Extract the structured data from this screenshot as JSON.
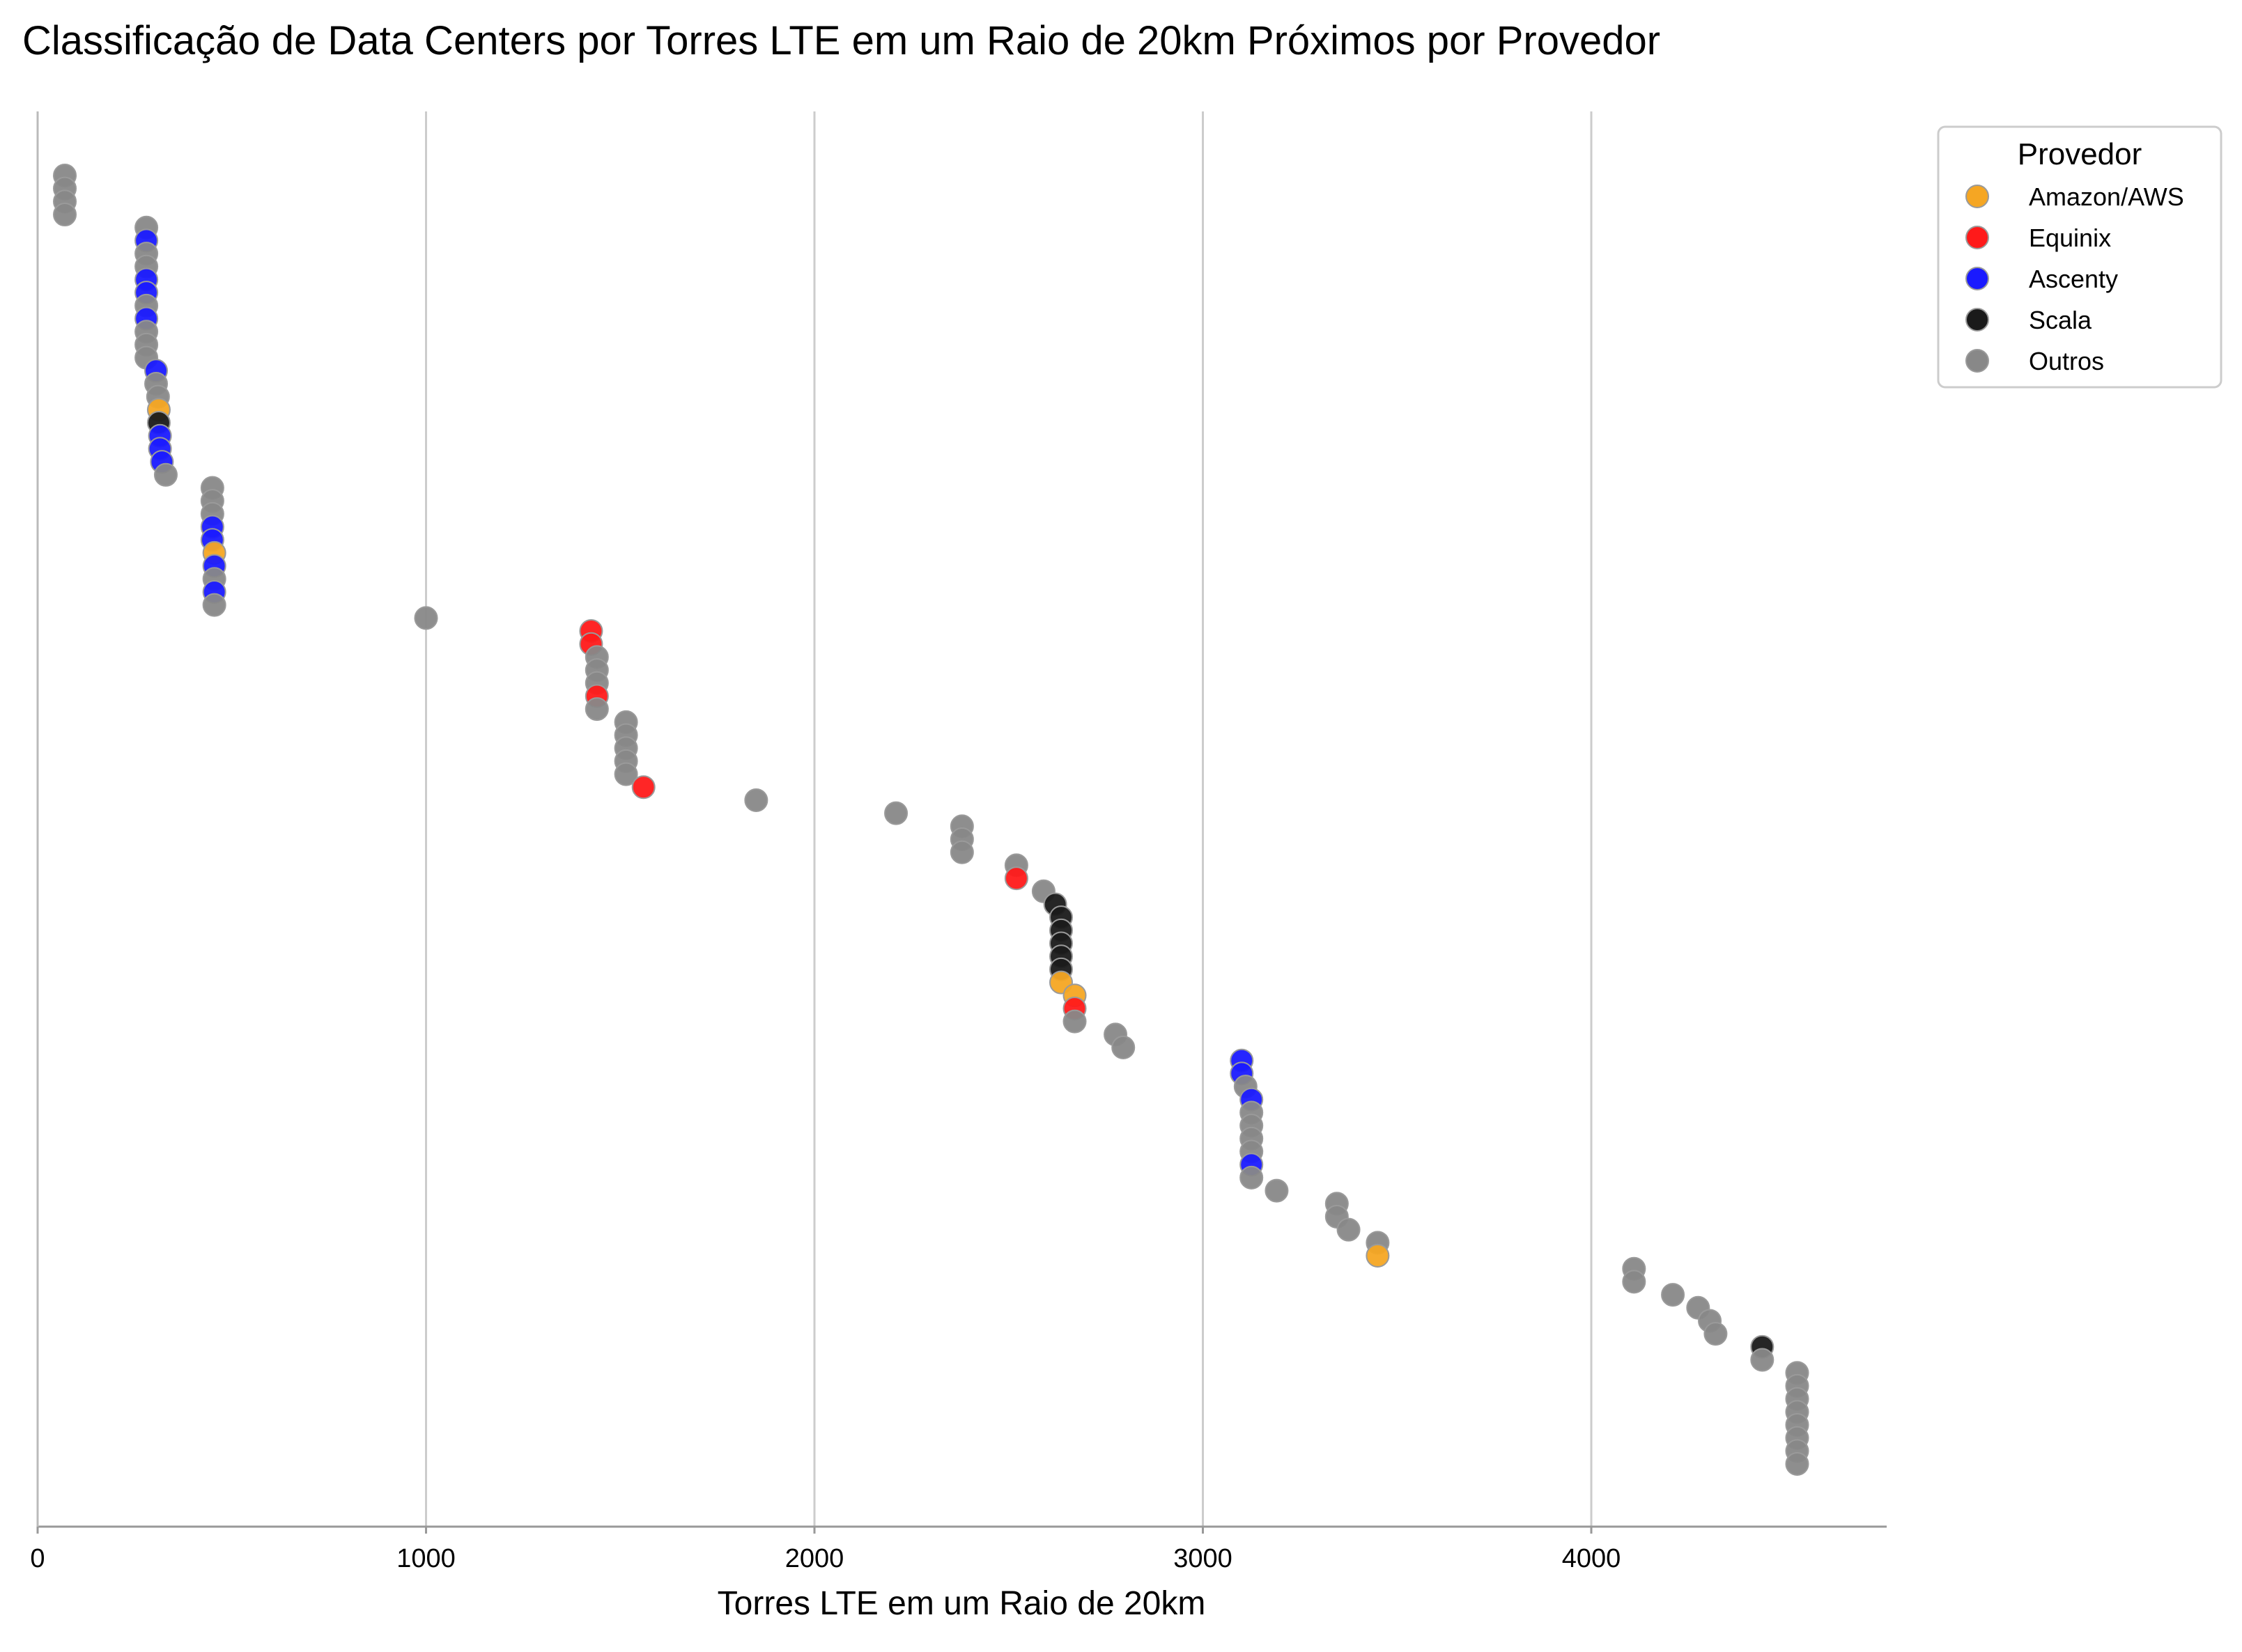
{
  "chart_data": {
    "type": "scatter",
    "title": "Classificação de Data Centers por Torres LTE em um Raio de 20km Próximos por Provedor",
    "xlabel": "Torres LTE em um Raio de 20km",
    "ylabel": "",
    "xlim": [
      0,
      4750
    ],
    "xticks": [
      0,
      1000,
      2000,
      3000,
      4000
    ],
    "grid": "vertical",
    "legend": {
      "title": "Provedor",
      "placement": "upper-right-outside",
      "entries": [
        {
          "name": "Amazon/AWS",
          "color": "#f5a623"
        },
        {
          "name": "Equinix",
          "color": "#ff1a1a"
        },
        {
          "name": "Ascenty",
          "color": "#1a1aff"
        },
        {
          "name": "Scala",
          "color": "#1a1a1a"
        },
        {
          "name": "Outros",
          "color": "#888888"
        }
      ]
    },
    "y_description": "rank order, top = first",
    "points": [
      {
        "x": 70,
        "p": "Outros"
      },
      {
        "x": 70,
        "p": "Outros"
      },
      {
        "x": 70,
        "p": "Outros"
      },
      {
        "x": 70,
        "p": "Outros"
      },
      {
        "x": 280,
        "p": "Outros"
      },
      {
        "x": 280,
        "p": "Ascenty"
      },
      {
        "x": 280,
        "p": "Outros"
      },
      {
        "x": 280,
        "p": "Outros"
      },
      {
        "x": 280,
        "p": "Ascenty"
      },
      {
        "x": 280,
        "p": "Ascenty"
      },
      {
        "x": 280,
        "p": "Outros"
      },
      {
        "x": 280,
        "p": "Ascenty"
      },
      {
        "x": 280,
        "p": "Outros"
      },
      {
        "x": 280,
        "p": "Outros"
      },
      {
        "x": 280,
        "p": "Outros"
      },
      {
        "x": 305,
        "p": "Ascenty"
      },
      {
        "x": 305,
        "p": "Outros"
      },
      {
        "x": 310,
        "p": "Outros"
      },
      {
        "x": 312,
        "p": "Amazon/AWS"
      },
      {
        "x": 312,
        "p": "Scala"
      },
      {
        "x": 315,
        "p": "Ascenty"
      },
      {
        "x": 315,
        "p": "Ascenty"
      },
      {
        "x": 320,
        "p": "Ascenty"
      },
      {
        "x": 330,
        "p": "Outros"
      },
      {
        "x": 450,
        "p": "Outros"
      },
      {
        "x": 450,
        "p": "Outros"
      },
      {
        "x": 450,
        "p": "Outros"
      },
      {
        "x": 450,
        "p": "Ascenty"
      },
      {
        "x": 450,
        "p": "Ascenty"
      },
      {
        "x": 455,
        "p": "Amazon/AWS"
      },
      {
        "x": 455,
        "p": "Ascenty"
      },
      {
        "x": 455,
        "p": "Outros"
      },
      {
        "x": 455,
        "p": "Ascenty"
      },
      {
        "x": 455,
        "p": "Outros"
      },
      {
        "x": 1000,
        "p": "Outros"
      },
      {
        "x": 1425,
        "p": "Equinix"
      },
      {
        "x": 1425,
        "p": "Equinix"
      },
      {
        "x": 1440,
        "p": "Outros"
      },
      {
        "x": 1440,
        "p": "Outros"
      },
      {
        "x": 1440,
        "p": "Outros"
      },
      {
        "x": 1440,
        "p": "Equinix"
      },
      {
        "x": 1440,
        "p": "Outros"
      },
      {
        "x": 1515,
        "p": "Outros"
      },
      {
        "x": 1515,
        "p": "Outros"
      },
      {
        "x": 1515,
        "p": "Outros"
      },
      {
        "x": 1515,
        "p": "Outros"
      },
      {
        "x": 1515,
        "p": "Outros"
      },
      {
        "x": 1560,
        "p": "Equinix"
      },
      {
        "x": 1850,
        "p": "Outros"
      },
      {
        "x": 2210,
        "p": "Outros"
      },
      {
        "x": 2380,
        "p": "Outros"
      },
      {
        "x": 2380,
        "p": "Outros"
      },
      {
        "x": 2380,
        "p": "Outros"
      },
      {
        "x": 2520,
        "p": "Outros"
      },
      {
        "x": 2520,
        "p": "Equinix"
      },
      {
        "x": 2590,
        "p": "Outros"
      },
      {
        "x": 2620,
        "p": "Scala"
      },
      {
        "x": 2635,
        "p": "Scala"
      },
      {
        "x": 2635,
        "p": "Scala"
      },
      {
        "x": 2635,
        "p": "Scala"
      },
      {
        "x": 2635,
        "p": "Scala"
      },
      {
        "x": 2635,
        "p": "Scala"
      },
      {
        "x": 2635,
        "p": "Amazon/AWS"
      },
      {
        "x": 2670,
        "p": "Amazon/AWS"
      },
      {
        "x": 2670,
        "p": "Equinix"
      },
      {
        "x": 2670,
        "p": "Outros"
      },
      {
        "x": 2775,
        "p": "Outros"
      },
      {
        "x": 2795,
        "p": "Outros"
      },
      {
        "x": 3100,
        "p": "Ascenty"
      },
      {
        "x": 3100,
        "p": "Ascenty"
      },
      {
        "x": 3110,
        "p": "Outros"
      },
      {
        "x": 3125,
        "p": "Ascenty"
      },
      {
        "x": 3125,
        "p": "Outros"
      },
      {
        "x": 3125,
        "p": "Outros"
      },
      {
        "x": 3125,
        "p": "Outros"
      },
      {
        "x": 3125,
        "p": "Outros"
      },
      {
        "x": 3125,
        "p": "Ascenty"
      },
      {
        "x": 3125,
        "p": "Outros"
      },
      {
        "x": 3190,
        "p": "Outros"
      },
      {
        "x": 3345,
        "p": "Outros"
      },
      {
        "x": 3345,
        "p": "Outros"
      },
      {
        "x": 3375,
        "p": "Outros"
      },
      {
        "x": 3450,
        "p": "Outros"
      },
      {
        "x": 3450,
        "p": "Amazon/AWS"
      },
      {
        "x": 4110,
        "p": "Outros"
      },
      {
        "x": 4110,
        "p": "Outros"
      },
      {
        "x": 4210,
        "p": "Outros"
      },
      {
        "x": 4275,
        "p": "Outros"
      },
      {
        "x": 4305,
        "p": "Outros"
      },
      {
        "x": 4320,
        "p": "Outros"
      },
      {
        "x": 4440,
        "p": "Scala"
      },
      {
        "x": 4440,
        "p": "Outros"
      },
      {
        "x": 4530,
        "p": "Outros"
      },
      {
        "x": 4530,
        "p": "Outros"
      },
      {
        "x": 4530,
        "p": "Outros"
      },
      {
        "x": 4530,
        "p": "Outros"
      },
      {
        "x": 4530,
        "p": "Outros"
      },
      {
        "x": 4530,
        "p": "Outros"
      },
      {
        "x": 4530,
        "p": "Outros"
      },
      {
        "x": 4530,
        "p": "Outros"
      }
    ]
  }
}
